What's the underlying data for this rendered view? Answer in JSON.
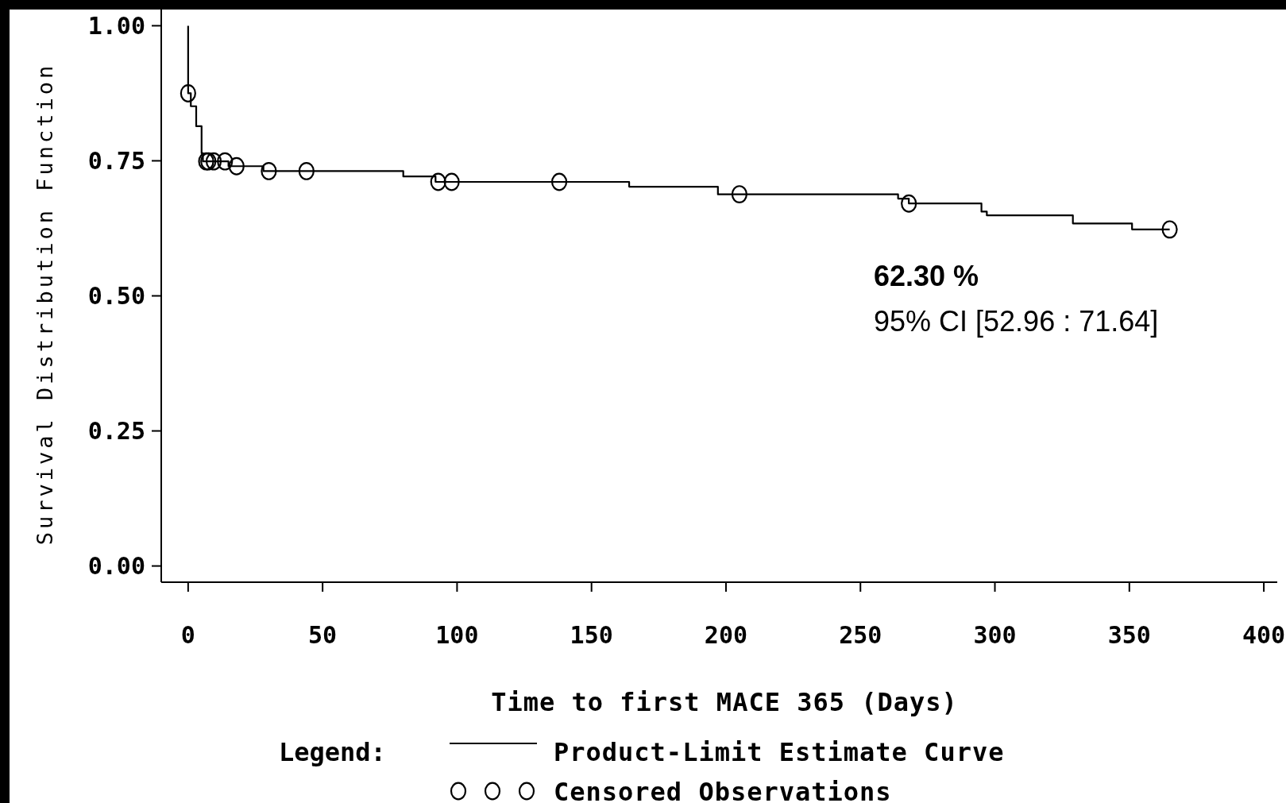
{
  "chart_data": {
    "type": "step",
    "xlabel": "Time to first MACE 365 (Days)",
    "ylabel": "Survival Distribution Function",
    "legend_title": "Legend:",
    "legend": "bottom",
    "xlim": [
      -10,
      405
    ],
    "xticks": [
      0,
      50,
      100,
      150,
      200,
      250,
      300,
      350,
      400
    ],
    "ylim": [
      -0.03,
      1.03
    ],
    "yticks": [
      {
        "value": 0,
        "label": "0.00"
      },
      {
        "value": 0.25,
        "label": "0.25"
      },
      {
        "value": 0.5,
        "label": "0.50"
      },
      {
        "value": 0.75,
        "label": "0.75"
      },
      {
        "value": 1,
        "label": "1.00"
      }
    ],
    "series": [
      {
        "name": "Product-Limit Estimate Curve",
        "color": "#000000",
        "line_style": "solid",
        "x": [
          0,
          0,
          1,
          3,
          5,
          5.5,
          15,
          28,
          80,
          92,
          164,
          197,
          264,
          268,
          295,
          297,
          329,
          351,
          365
        ],
        "values": [
          1.0,
          0.875,
          0.851,
          0.814,
          0.764,
          0.749,
          0.74,
          0.731,
          0.721,
          0.711,
          0.702,
          0.688,
          0.68,
          0.671,
          0.656,
          0.649,
          0.634,
          0.623,
          0.623
        ]
      },
      {
        "name": "Censored Observations",
        "type": "scatter",
        "marker": "circle",
        "color": "#000000",
        "x": [
          0,
          6.7,
          7.5,
          9.5,
          13.7,
          18,
          30,
          44,
          93,
          98,
          138,
          205,
          268,
          365
        ],
        "values": [
          0.875,
          0.749,
          0.749,
          0.749,
          0.749,
          0.74,
          0.731,
          0.731,
          0.711,
          0.711,
          0.711,
          0.688,
          0.671,
          0.623
        ]
      }
    ],
    "annotations": [
      "62.30 %",
      "95% CI [52.96 : 71.64]"
    ]
  }
}
